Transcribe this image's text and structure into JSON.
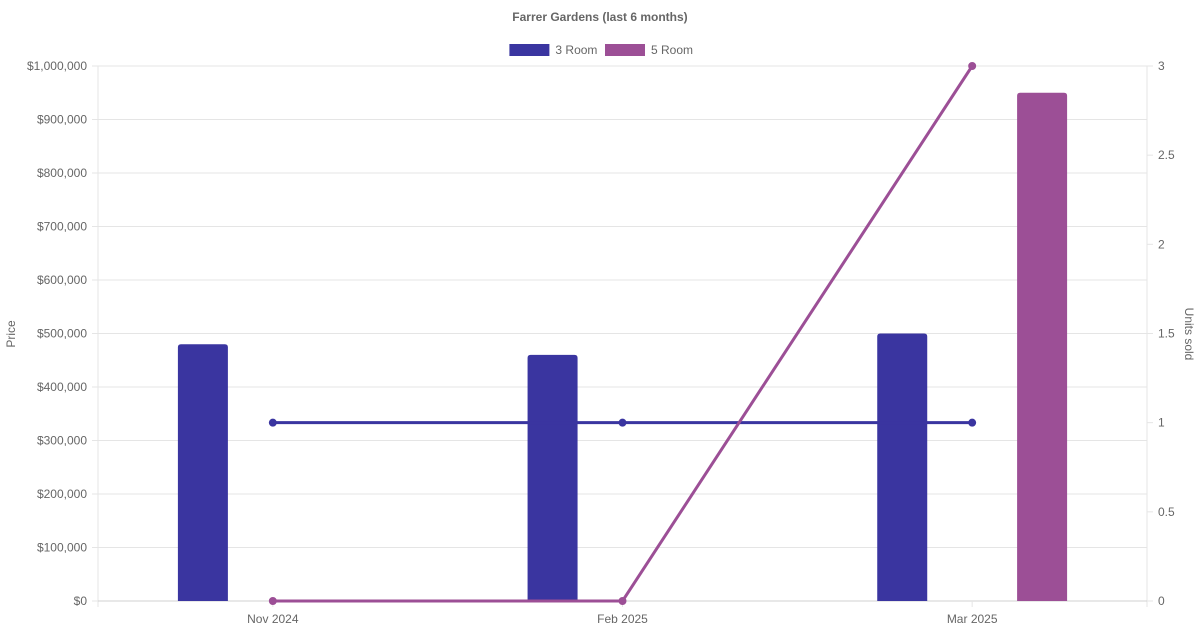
{
  "chart_data": {
    "type": "bar",
    "title": "Farrer Gardens (last 6 months)",
    "categories": [
      "Nov 2024",
      "Feb 2025",
      "Mar 2025"
    ],
    "y_left": {
      "label": "Price",
      "ylim": [
        0,
        1000000
      ],
      "ticks": [
        "$0",
        "$100,000",
        "$200,000",
        "$300,000",
        "$400,000",
        "$500,000",
        "$600,000",
        "$700,000",
        "$800,000",
        "$900,000",
        "$1,000,000"
      ],
      "tick_values": [
        0,
        100000,
        200000,
        300000,
        400000,
        500000,
        600000,
        700000,
        800000,
        900000,
        1000000
      ]
    },
    "y_right": {
      "label": "Units sold",
      "ylim": [
        0,
        3
      ],
      "ticks": [
        "0",
        "0.5",
        "1",
        "1.5",
        "2",
        "2.5",
        "3"
      ],
      "tick_values": [
        0,
        0.5,
        1,
        1.5,
        2,
        2.5,
        3
      ]
    },
    "series": [
      {
        "name": "3 Room",
        "color": "#3a35a0",
        "price_values": [
          480000,
          460000,
          500000
        ],
        "units_values": [
          1,
          1,
          1
        ]
      },
      {
        "name": "5 Room",
        "color": "#9c4f96",
        "price_values": [
          null,
          null,
          950000
        ],
        "units_values": [
          0,
          0,
          3
        ]
      }
    ],
    "grid": true,
    "legend_position": "top-center"
  }
}
